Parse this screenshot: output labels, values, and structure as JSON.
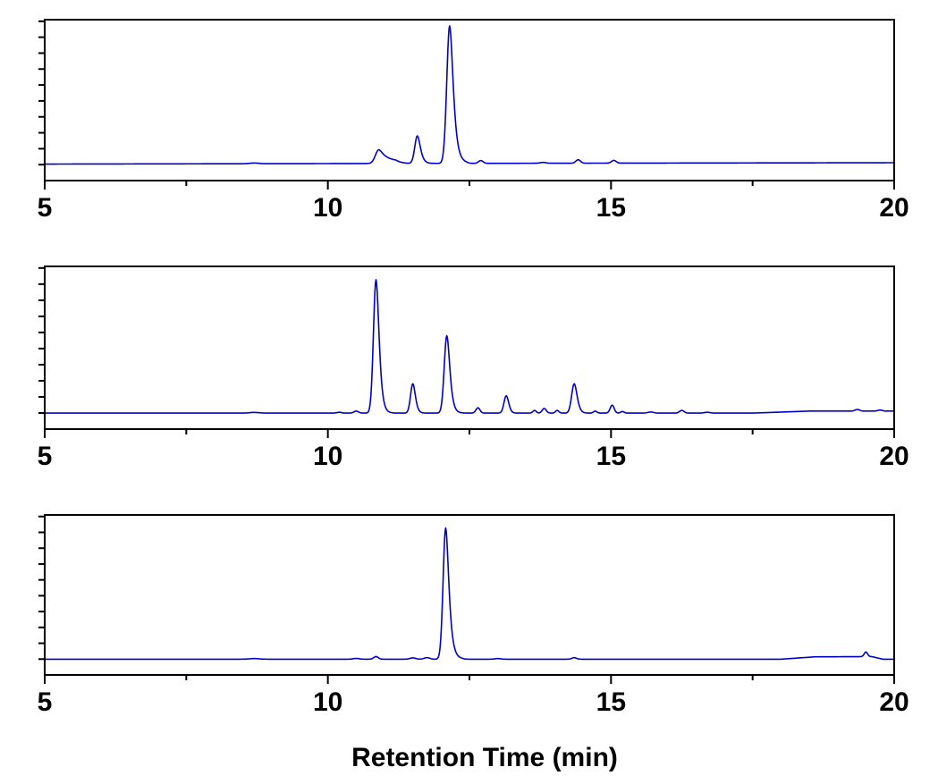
{
  "chart_data": [
    {
      "type": "line",
      "xlabel": "",
      "ylabel": "",
      "xlim": [
        5,
        20
      ],
      "x_ticks": [
        5,
        10,
        15,
        20
      ],
      "x_tick_labels": [
        "5",
        "10",
        "15",
        "20"
      ],
      "x_minor_step": 2.5,
      "y_minor_ticks": 10,
      "ylim": [
        -0.12,
        1.05
      ],
      "grid": false,
      "legend": "none",
      "color": "#0000cc",
      "baseline": 0.0,
      "drift": [
        [
          5,
          0.0
        ],
        [
          12,
          0.005
        ],
        [
          20,
          0.01
        ]
      ],
      "peaks": [
        {
          "x": 8.7,
          "h": 0.005,
          "w": 0.08
        },
        {
          "x": 10.9,
          "h": 0.1,
          "w": 0.06,
          "tail": 0.12
        },
        {
          "x": 11.58,
          "h": 0.2,
          "w": 0.045,
          "tail": 0.04
        },
        {
          "x": 12.15,
          "h": 1.0,
          "w": 0.05,
          "tail": 0.05
        },
        {
          "x": 12.7,
          "h": 0.02,
          "w": 0.04
        },
        {
          "x": 13.8,
          "h": 0.006,
          "w": 0.05
        },
        {
          "x": 14.42,
          "h": 0.025,
          "w": 0.04
        },
        {
          "x": 15.05,
          "h": 0.02,
          "w": 0.04
        }
      ]
    },
    {
      "type": "line",
      "xlabel": "",
      "ylabel": "",
      "xlim": [
        5,
        20
      ],
      "x_ticks": [
        5,
        10,
        15,
        20
      ],
      "x_tick_labels": [
        "5",
        "10",
        "15",
        "20"
      ],
      "x_minor_step": 2.5,
      "y_minor_ticks": 10,
      "ylim": [
        -0.12,
        1.1
      ],
      "grid": false,
      "legend": "none",
      "color": "#0000cc",
      "baseline": 0.0,
      "drift": [
        [
          5,
          0.0
        ],
        [
          17.5,
          0.0
        ],
        [
          18.5,
          0.015
        ],
        [
          20,
          0.015
        ]
      ],
      "peaks": [
        {
          "x": 8.7,
          "h": 0.005,
          "w": 0.08
        },
        {
          "x": 10.2,
          "h": 0.006,
          "w": 0.04
        },
        {
          "x": 10.5,
          "h": 0.015,
          "w": 0.04
        },
        {
          "x": 10.85,
          "h": 1.0,
          "w": 0.045,
          "tail": 0.04
        },
        {
          "x": 11.5,
          "h": 0.22,
          "w": 0.04,
          "tail": 0.03
        },
        {
          "x": 12.1,
          "h": 0.58,
          "w": 0.045,
          "tail": 0.04
        },
        {
          "x": 12.65,
          "h": 0.04,
          "w": 0.035
        },
        {
          "x": 13.15,
          "h": 0.13,
          "w": 0.04,
          "tail": 0.02
        },
        {
          "x": 13.65,
          "h": 0.02,
          "w": 0.03
        },
        {
          "x": 13.82,
          "h": 0.035,
          "w": 0.035
        },
        {
          "x": 14.05,
          "h": 0.02,
          "w": 0.03
        },
        {
          "x": 14.35,
          "h": 0.22,
          "w": 0.045,
          "tail": 0.03
        },
        {
          "x": 14.72,
          "h": 0.015,
          "w": 0.03
        },
        {
          "x": 15.02,
          "h": 0.06,
          "w": 0.035
        },
        {
          "x": 15.2,
          "h": 0.012,
          "w": 0.03
        },
        {
          "x": 15.7,
          "h": 0.008,
          "w": 0.05
        },
        {
          "x": 16.25,
          "h": 0.02,
          "w": 0.04
        },
        {
          "x": 16.7,
          "h": 0.006,
          "w": 0.05
        },
        {
          "x": 19.35,
          "h": 0.012,
          "w": 0.04
        },
        {
          "x": 19.75,
          "h": 0.008,
          "w": 0.04
        }
      ]
    },
    {
      "type": "line",
      "xlabel": "Retention Time (min)",
      "ylabel": "",
      "xlim": [
        5,
        20
      ],
      "x_ticks": [
        5,
        10,
        15,
        20
      ],
      "x_tick_labels": [
        "5",
        "10",
        "15",
        "20"
      ],
      "x_minor_step": 2.5,
      "y_minor_ticks": 10,
      "ylim": [
        -0.12,
        1.1
      ],
      "grid": false,
      "legend": "none",
      "color": "#0000cc",
      "baseline": 0.0,
      "drift": [
        [
          5,
          0.0
        ],
        [
          18,
          0.0
        ],
        [
          18.6,
          0.018
        ],
        [
          19.6,
          0.02
        ],
        [
          19.8,
          0.0
        ],
        [
          20,
          0.0
        ]
      ],
      "peaks": [
        {
          "x": 8.7,
          "h": 0.005,
          "w": 0.08
        },
        {
          "x": 10.5,
          "h": 0.006,
          "w": 0.05
        },
        {
          "x": 10.85,
          "h": 0.02,
          "w": 0.04
        },
        {
          "x": 11.5,
          "h": 0.01,
          "w": 0.05
        },
        {
          "x": 11.75,
          "h": 0.012,
          "w": 0.05
        },
        {
          "x": 12.08,
          "h": 1.0,
          "w": 0.045,
          "tail": 0.05
        },
        {
          "x": 13.0,
          "h": 0.005,
          "w": 0.05
        },
        {
          "x": 14.35,
          "h": 0.012,
          "w": 0.04
        },
        {
          "x": 19.5,
          "h": 0.035,
          "w": 0.03
        }
      ]
    }
  ]
}
